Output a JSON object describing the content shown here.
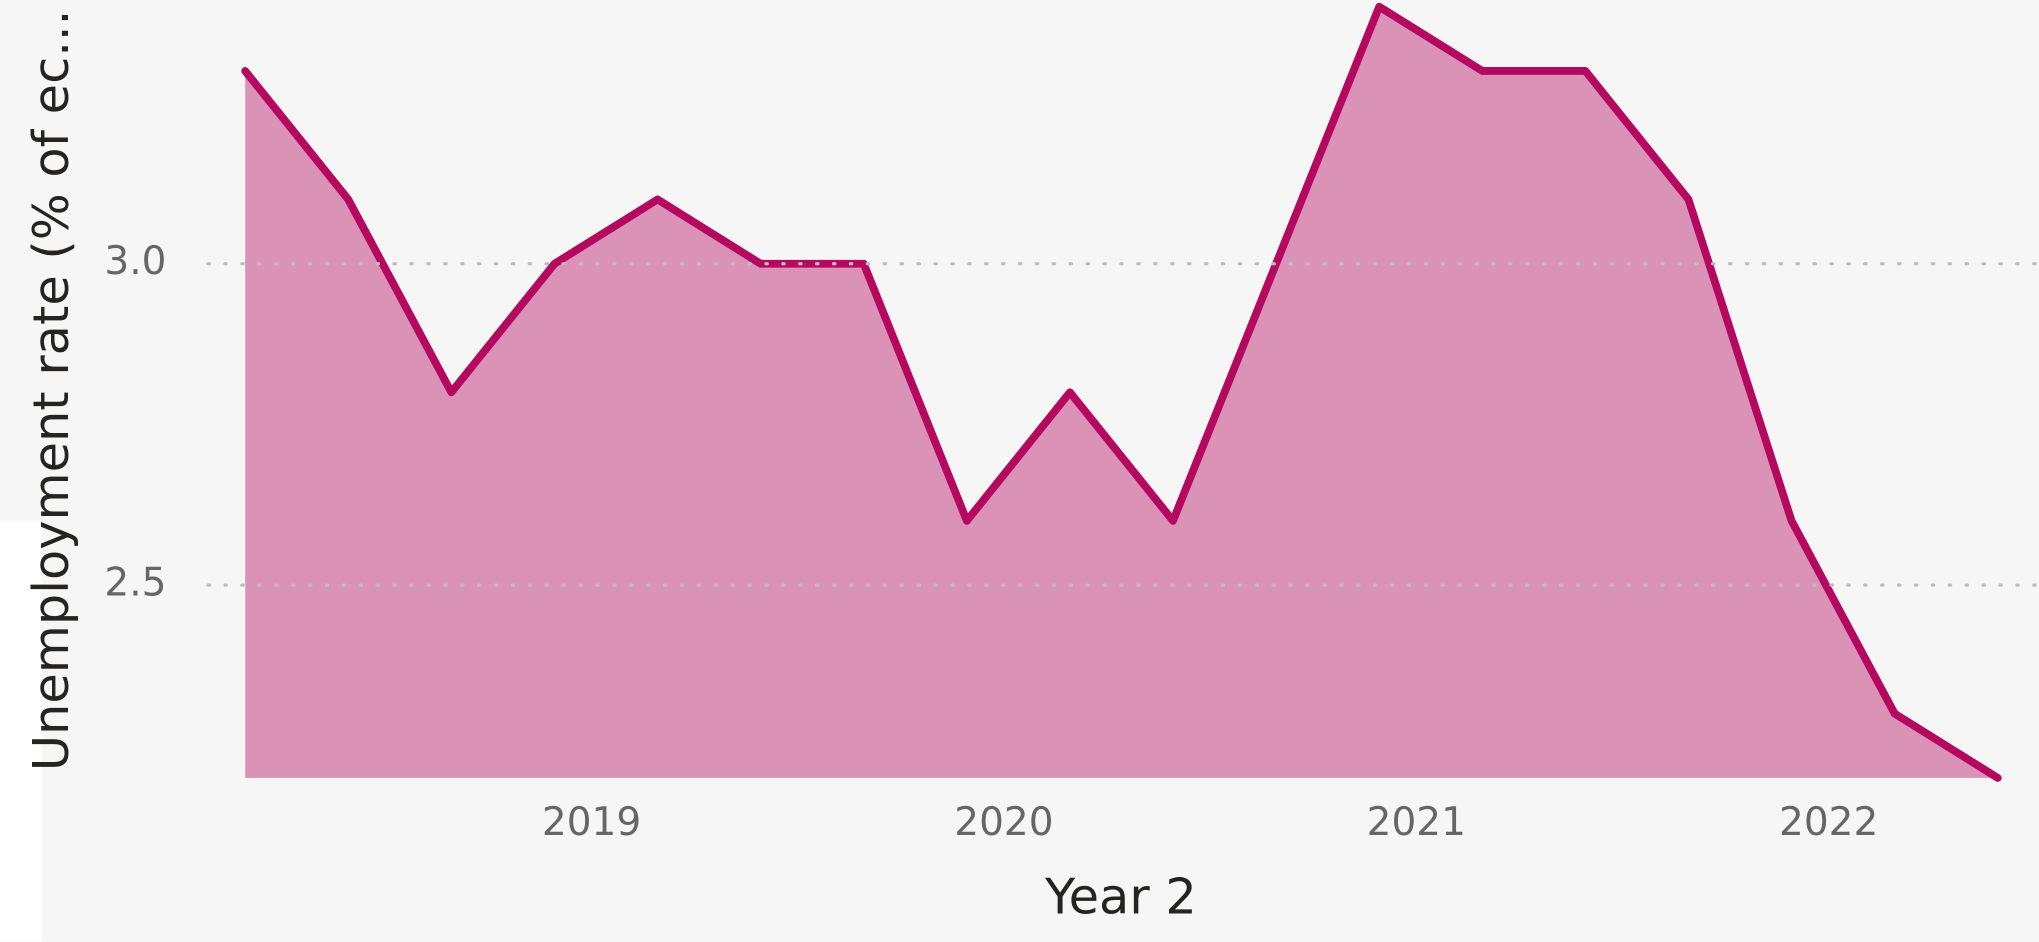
{
  "chart_data": {
    "type": "area",
    "title": null,
    "x_label": "Year 2",
    "y_label": "Unemployment rate (% of ec...",
    "x": [
      2018.66,
      2018.91,
      2019.16,
      2019.41,
      2019.66,
      2019.91,
      2020.16,
      2020.41,
      2020.66,
      2020.91,
      2021.16,
      2021.41,
      2021.66,
      2021.91,
      2022.16,
      2022.41,
      2022.66,
      2022.91
    ],
    "series": [
      {
        "name": "Unemployment rate",
        "color": "#b5095f",
        "fill": "#db92b7",
        "values": [
          3.3,
          3.1,
          2.8,
          3.0,
          3.1,
          3.0,
          3.0,
          2.6,
          2.8,
          2.6,
          3.0,
          3.4,
          3.3,
          3.3,
          3.1,
          2.6,
          2.3,
          2.2
        ]
      }
    ],
    "xlim": [
      2018.57,
      2023.01
    ],
    "xticks": [
      {
        "value": 2019.5,
        "label": "2019"
      },
      {
        "value": 2020.5,
        "label": "2020"
      },
      {
        "value": 2021.5,
        "label": "2021"
      },
      {
        "value": 2022.5,
        "label": "2022"
      }
    ],
    "ylim": [
      2.2,
      3.41
    ],
    "yticks": [
      {
        "value": 2.5,
        "label": "2.5"
      },
      {
        "value": 3.0,
        "label": "3.0"
      }
    ],
    "grid": true
  }
}
